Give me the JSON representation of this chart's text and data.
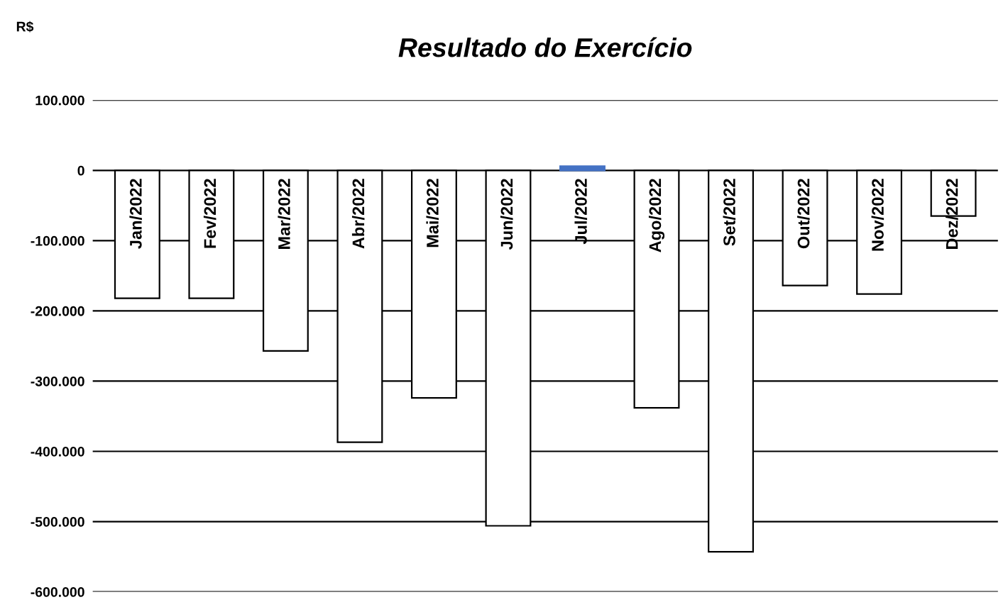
{
  "chart_data": {
    "type": "bar",
    "title": "Resultado do Exercício",
    "ylabel": "R$",
    "categories": [
      "Jan/2022",
      "Fev/2022",
      "Mar/2022",
      "Abr/2022",
      "Mai/2022",
      "Jun/2022",
      "Jul/2022",
      "Ago/2022",
      "Set/2022",
      "Out/2022",
      "Nov/2022",
      "Dez/2022"
    ],
    "values": [
      -182000,
      -182000,
      -257000,
      -387000,
      -324000,
      -506000,
      6000,
      -338000,
      -543000,
      -164000,
      -176000,
      -65000
    ],
    "colors": [
      "#ffffff",
      "#ffffff",
      "#ffffff",
      "#ffffff",
      "#ffffff",
      "#ffffff",
      "#4472c4",
      "#ffffff",
      "#ffffff",
      "#ffffff",
      "#ffffff",
      "#ffffff"
    ],
    "ylim": [
      -600000,
      100000
    ],
    "yticks": [
      {
        "value": 100000,
        "label": "100.000"
      },
      {
        "value": 0,
        "label": "0"
      },
      {
        "value": -100000,
        "label": "-100.000"
      },
      {
        "value": -200000,
        "label": "-200.000"
      },
      {
        "value": -300000,
        "label": "-300.000"
      },
      {
        "value": -400000,
        "label": "-400.000"
      },
      {
        "value": -500000,
        "label": "-500.000"
      },
      {
        "value": -600000,
        "label": "-600.000"
      }
    ],
    "grid": "y",
    "legend": false
  }
}
